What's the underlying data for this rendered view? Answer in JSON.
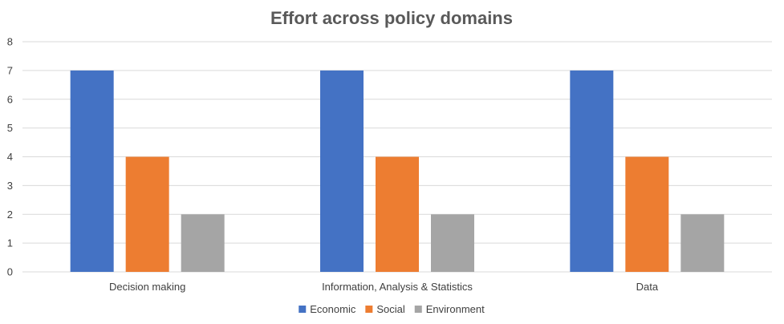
{
  "chart_data": {
    "type": "bar",
    "title": "Effort across policy domains",
    "xlabel": "",
    "ylabel": "",
    "categories": [
      "Decision making",
      "Information, Analysis & Statistics",
      "Data"
    ],
    "series": [
      {
        "name": "Economic",
        "values": [
          7,
          7,
          7
        ],
        "color": "#4472C4"
      },
      {
        "name": "Social",
        "values": [
          4,
          4,
          4
        ],
        "color": "#ED7D31"
      },
      {
        "name": "Environment",
        "values": [
          2,
          2,
          2
        ],
        "color": "#A5A5A5"
      }
    ],
    "ylim": [
      0,
      8
    ],
    "yticks": [
      "0",
      "1",
      "2",
      "3",
      "4",
      "5",
      "6",
      "7",
      "8"
    ],
    "grid": true,
    "legend_position": "bottom"
  }
}
